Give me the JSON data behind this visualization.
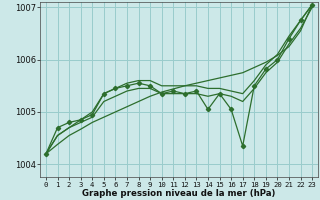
{
  "xlabel": "Graphe pression niveau de la mer (hPa)",
  "background_color": "#cce8e8",
  "grid_color": "#99cccc",
  "line_color": "#2d6e2d",
  "ylim": [
    1003.75,
    1007.1
  ],
  "xlim": [
    -0.5,
    23.5
  ],
  "yticks": [
    1004,
    1005,
    1006,
    1007
  ],
  "xticks": [
    0,
    1,
    2,
    3,
    4,
    5,
    6,
    7,
    8,
    9,
    10,
    11,
    12,
    13,
    14,
    15,
    16,
    17,
    18,
    19,
    20,
    21,
    22,
    23
  ],
  "series": {
    "zigzag": [
      1004.2,
      1004.7,
      1004.8,
      1004.85,
      1004.95,
      1005.35,
      1005.45,
      1005.5,
      1005.55,
      1005.5,
      1005.35,
      1005.4,
      1005.35,
      1005.4,
      1005.05,
      1005.35,
      1005.05,
      1004.35,
      1005.5,
      1005.82,
      1006.0,
      1006.4,
      1006.75,
      1007.05
    ],
    "smooth_upper": [
      1004.2,
      1004.55,
      1004.7,
      1004.85,
      1005.0,
      1005.35,
      1005.45,
      1005.55,
      1005.6,
      1005.6,
      1005.5,
      1005.5,
      1005.5,
      1005.5,
      1005.45,
      1005.45,
      1005.4,
      1005.35,
      1005.6,
      1005.9,
      1006.1,
      1006.45,
      1006.75,
      1007.05
    ],
    "smooth_lower": [
      1004.2,
      1004.55,
      1004.7,
      1004.8,
      1004.9,
      1005.2,
      1005.3,
      1005.4,
      1005.45,
      1005.45,
      1005.35,
      1005.35,
      1005.35,
      1005.35,
      1005.3,
      1005.35,
      1005.3,
      1005.2,
      1005.45,
      1005.75,
      1005.95,
      1006.3,
      1006.6,
      1007.0
    ],
    "trend": [
      1004.2,
      1004.38,
      1004.55,
      1004.67,
      1004.8,
      1004.9,
      1005.0,
      1005.1,
      1005.2,
      1005.3,
      1005.38,
      1005.44,
      1005.5,
      1005.55,
      1005.6,
      1005.65,
      1005.7,
      1005.75,
      1005.85,
      1005.95,
      1006.08,
      1006.25,
      1006.55,
      1007.05
    ]
  }
}
